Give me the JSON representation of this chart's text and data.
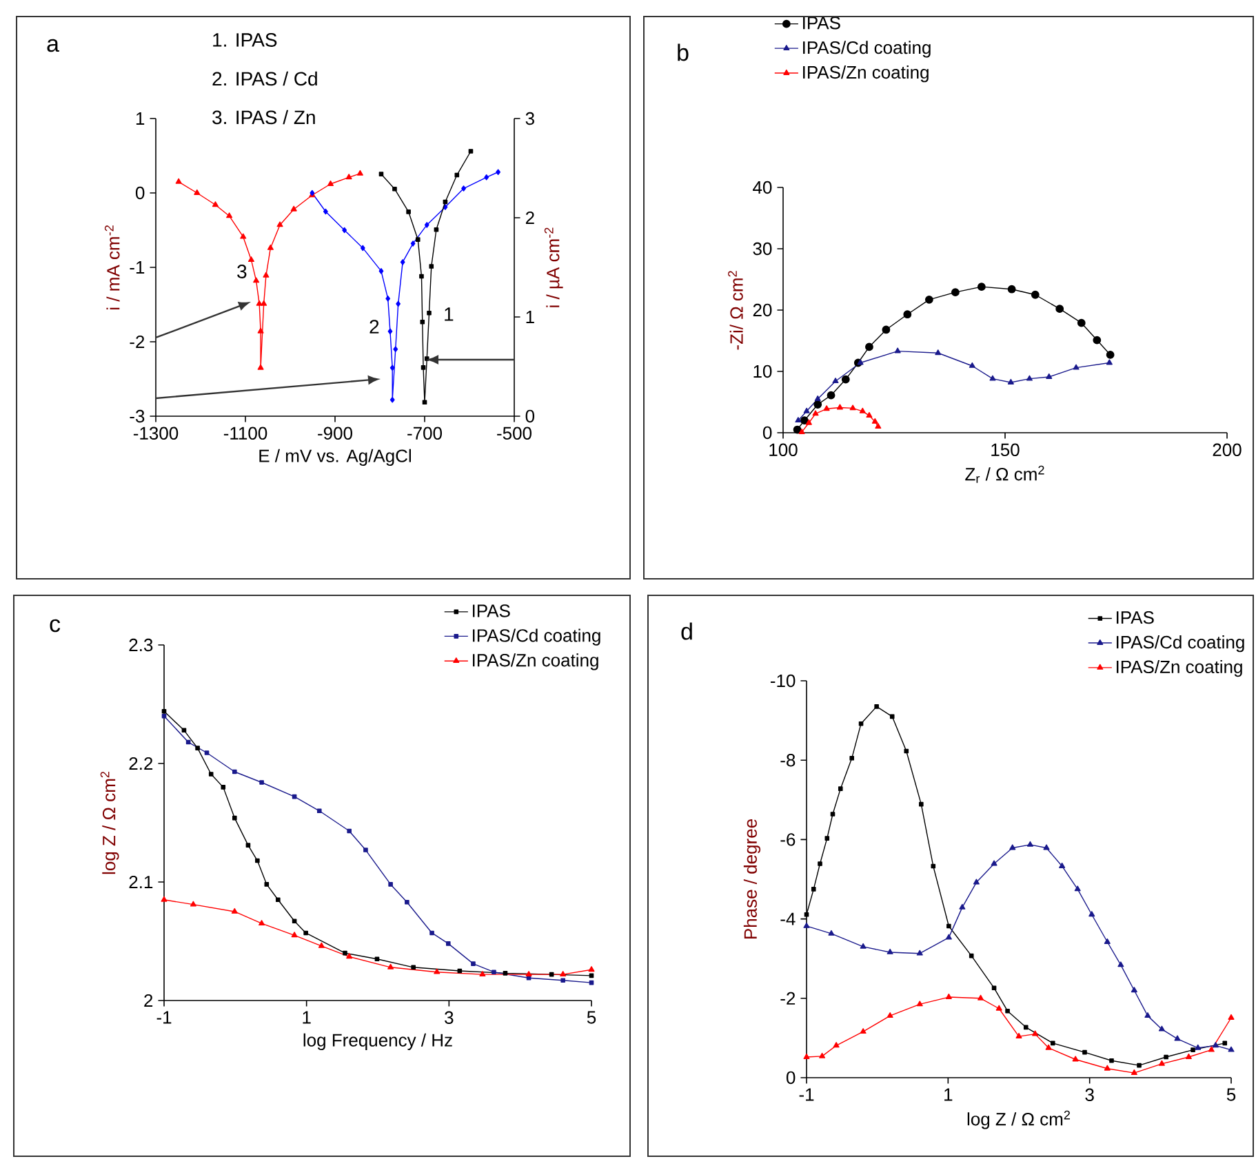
{
  "chart_data": [
    {
      "type": "line",
      "xlabel": "E / mV vs. Ag/AgCl",
      "ylabel": "i / mA cm$^{-2}$",
      "y2label": "i / µA cm$^{-2}$",
      "xlim": [
        -1300,
        -500
      ],
      "xticks": [
        -1300,
        -1100,
        -900,
        -700,
        -500
      ],
      "ylim": [
        -3,
        1
      ],
      "yticks": [
        -3,
        -2,
        -1,
        0,
        1
      ],
      "y2lim": [
        0,
        3
      ],
      "y2ticks": [
        0,
        1,
        2,
        3
      ],
      "annotations": [
        "a",
        "1. IPAS",
        "2. IPAS / Cd",
        "3. IPAS / Zn",
        "1",
        "2",
        "3"
      ],
      "series": [
        {
          "color": "#ff0000",
          "marker": "triangle",
          "x": [
            -1249,
            -1208,
            -1167,
            -1136,
            -1105,
            -1087,
            -1076,
            -1069,
            -1066,
            -1066,
            -1059,
            -1054,
            -1044,
            -1023,
            -992,
            -951,
            -910,
            -869,
            -844
          ],
          "values": [
            0.15,
            0.0,
            -0.16,
            -0.31,
            -0.59,
            -0.9,
            -1.18,
            -1.49,
            -1.86,
            -2.35,
            -1.49,
            -1.11,
            -0.74,
            -0.43,
            -0.22,
            -0.03,
            0.12,
            0.21,
            0.26
          ]
        },
        {
          "color": "#0000ff",
          "marker": "diamond",
          "x": [
            -951,
            -921,
            -879,
            -838,
            -797,
            -782,
            -777,
            -772,
            -772,
            -765,
            -759,
            -749,
            -726,
            -695,
            -654,
            -613,
            -562,
            -536
          ],
          "values": [
            0.0,
            -0.25,
            -0.5,
            -0.74,
            -1.05,
            -1.42,
            -1.86,
            -2.35,
            -2.78,
            -2.1,
            -1.49,
            -0.93,
            -0.68,
            -0.43,
            -0.19,
            0.06,
            0.21,
            0.28
          ]
        },
        {
          "color": "#000000",
          "marker": "square",
          "axis": "y2",
          "x": [
            -797,
            -767,
            -736,
            -715,
            -707,
            -705,
            -703,
            -700,
            -695,
            -690,
            -685,
            -674,
            -654,
            -628,
            -597
          ],
          "values": [
            2.44,
            2.29,
            2.06,
            1.78,
            1.41,
            0.95,
            0.49,
            0.14,
            0.58,
            1.04,
            1.51,
            1.88,
            2.16,
            2.43,
            2.67
          ]
        }
      ]
    },
    {
      "type": "line",
      "xlabel": "Z$_{r}$ / Ω cm$^{2}$",
      "ylabel": "-Zi/ Ω cm$^{2}$",
      "xlim": [
        100,
        200
      ],
      "xticks": [
        100,
        150,
        200
      ],
      "ylim": [
        0,
        40
      ],
      "yticks": [
        0,
        10,
        20,
        30,
        40
      ],
      "legend": "top left",
      "annotations": [
        "b"
      ],
      "series": [
        {
          "name": "IPAS",
          "color": "#000000",
          "marker": "circle",
          "x": [
            103.2,
            104.8,
            107.8,
            110.8,
            114.1,
            116.9,
            119.4,
            123.2,
            128.0,
            132.9,
            138.8,
            144.7,
            151.5,
            156.8,
            162.3,
            167.2,
            170.7,
            173.7
          ],
          "values": [
            0.5,
            2.0,
            4.6,
            6.1,
            8.7,
            11.4,
            14.0,
            16.8,
            19.3,
            21.7,
            22.9,
            23.8,
            23.4,
            22.5,
            20.2,
            17.9,
            15.1,
            12.7
          ]
        },
        {
          "name": "IPAS/Cd coating",
          "color": "#1a1a8c",
          "marker": "triangle",
          "x": [
            103.4,
            105.3,
            107.8,
            111.8,
            117.4,
            125.8,
            134.9,
            142.6,
            147.2,
            151.3,
            155.5,
            159.9,
            166.0,
            173.5
          ],
          "values": [
            2.0,
            3.5,
            5.5,
            8.4,
            11.4,
            13.3,
            13.0,
            10.9,
            8.8,
            8.2,
            8.8,
            9.1,
            10.6,
            11.4
          ]
        },
        {
          "name": "IPAS/Zn coating",
          "color": "#ff0000",
          "marker": "triangle",
          "x": [
            104.2,
            105.8,
            107.3,
            109.8,
            112.8,
            115.7,
            117.9,
            119.4,
            120.7,
            121.4
          ],
          "values": [
            0.1,
            1.6,
            3.1,
            3.9,
            4.1,
            4.0,
            3.5,
            2.8,
            1.8,
            1.0
          ]
        }
      ]
    },
    {
      "type": "line",
      "xlabel": "log Frequency / Hz",
      "ylabel": "log Z / Ω cm$^{2}$",
      "xlim": [
        -1,
        5
      ],
      "xticks": [
        -1,
        1,
        3,
        5
      ],
      "ylim": [
        2,
        2.3
      ],
      "yticks": [
        2,
        2.1,
        2.2,
        2.3
      ],
      "legend": "top right",
      "annotations": [
        "c"
      ],
      "series": [
        {
          "name": "IPAS",
          "color": "#000000",
          "marker": "square",
          "x": [
            -1,
            -0.72,
            -0.53,
            -0.34,
            -0.17,
            -0.01,
            0.18,
            0.31,
            0.44,
            0.6,
            0.83,
            0.99,
            1.21,
            1.54,
            1.99,
            2.5,
            3.15,
            3.79,
            4.44,
            5
          ],
          "values": [
            2.244,
            2.228,
            2.213,
            2.191,
            2.18,
            2.154,
            2.131,
            2.118,
            2.098,
            2.085,
            2.067,
            2.057,
            null,
            2.04,
            2.035,
            2.028,
            2.025,
            2.023,
            2.022,
            2.021
          ]
        },
        {
          "name": "IPAS/Cd coating",
          "color": "#1a1a8c",
          "marker": "square",
          "x": [
            -1,
            -0.66,
            -0.4,
            -0.01,
            0.37,
            0.83,
            1.18,
            1.6,
            1.83,
            2.18,
            2.41,
            2.76,
            2.99,
            3.34,
            3.63,
            4.12,
            4.6,
            5
          ],
          "values": [
            2.24,
            2.218,
            2.209,
            2.193,
            2.184,
            2.172,
            2.16,
            2.143,
            2.127,
            2.098,
            2.083,
            2.057,
            2.048,
            2.031,
            2.024,
            2.019,
            2.017,
            2.015
          ]
        },
        {
          "name": "IPAS/Zn coating",
          "color": "#ff0000",
          "marker": "triangle",
          "x": [
            -1,
            -0.59,
            -0.01,
            0.37,
            0.83,
            1.21,
            1.6,
            2.18,
            2.83,
            3.47,
            4.12,
            4.6,
            5
          ],
          "values": [
            2.085,
            2.081,
            2.075,
            2.065,
            2.055,
            2.046,
            2.037,
            2.028,
            2.024,
            2.022,
            2.022,
            2.022,
            2.026
          ]
        }
      ]
    },
    {
      "type": "line",
      "xlabel": "log Z / Ω cm$^{2}$",
      "ylabel": "Phase / degree",
      "xlim": [
        -1,
        5
      ],
      "xticks": [
        -1,
        1,
        3,
        5
      ],
      "ylim": [
        0,
        -10
      ],
      "yticks": [
        0,
        -2,
        -4,
        -6,
        -8,
        -10
      ],
      "legend": "top right",
      "annotations": [
        "d"
      ],
      "series": [
        {
          "name": "IPAS",
          "color": "#000000",
          "marker": "square",
          "x": [
            -1,
            -0.9,
            -0.81,
            -0.71,
            -0.63,
            -0.52,
            -0.36,
            -0.23,
            -0.01,
            0.21,
            0.41,
            0.62,
            0.79,
            1.01,
            1.33,
            1.65,
            1.84,
            2.1,
            2.48,
            2.93,
            3.31,
            3.7,
            4.08,
            4.46,
            4.91
          ],
          "values": [
            -4.11,
            -4.75,
            -5.39,
            -6.03,
            -6.64,
            -7.28,
            -8.05,
            -8.92,
            -9.35,
            -9.1,
            -8.23,
            -6.89,
            -5.33,
            -3.82,
            -3.07,
            -2.26,
            -1.68,
            -1.27,
            -0.87,
            -0.64,
            -0.43,
            -0.31,
            -0.52,
            -0.7,
            -0.87
          ]
        },
        {
          "name": "IPAS/Cd coating",
          "color": "#1a1a8c",
          "marker": "triangle",
          "x": [
            -1,
            -0.65,
            -0.2,
            0.18,
            0.6,
            1.01,
            1.2,
            1.4,
            1.65,
            1.91,
            2.16,
            2.39,
            2.61,
            2.83,
            3.03,
            3.25,
            3.44,
            3.63,
            3.82,
            4.02,
            4.24,
            4.53,
            4.78,
            5
          ],
          "values": [
            -3.82,
            -3.63,
            -3.3,
            -3.16,
            -3.13,
            -3.53,
            -4.29,
            -4.92,
            -5.39,
            -5.79,
            -5.87,
            -5.79,
            -5.33,
            -4.75,
            -4.11,
            -3.42,
            -2.84,
            -2.2,
            -1.56,
            -1.22,
            -0.98,
            -0.75,
            -0.81,
            -0.7
          ]
        },
        {
          "name": "IPAS/Zn coating",
          "color": "#ff0000",
          "marker": "triangle",
          "x": [
            -1,
            -0.78,
            -0.58,
            -0.2,
            0.18,
            0.6,
            1.01,
            1.46,
            1.72,
            2.0,
            2.23,
            2.42,
            2.8,
            3.25,
            3.63,
            4.02,
            4.4,
            4.72,
            5
          ],
          "values": [
            -0.52,
            -0.54,
            -0.81,
            -1.16,
            -1.56,
            -1.85,
            -2.03,
            -2.0,
            -1.74,
            -1.04,
            -1.1,
            -0.75,
            -0.46,
            -0.23,
            -0.12,
            -0.35,
            -0.52,
            -0.7,
            -1.51
          ]
        }
      ]
    }
  ]
}
